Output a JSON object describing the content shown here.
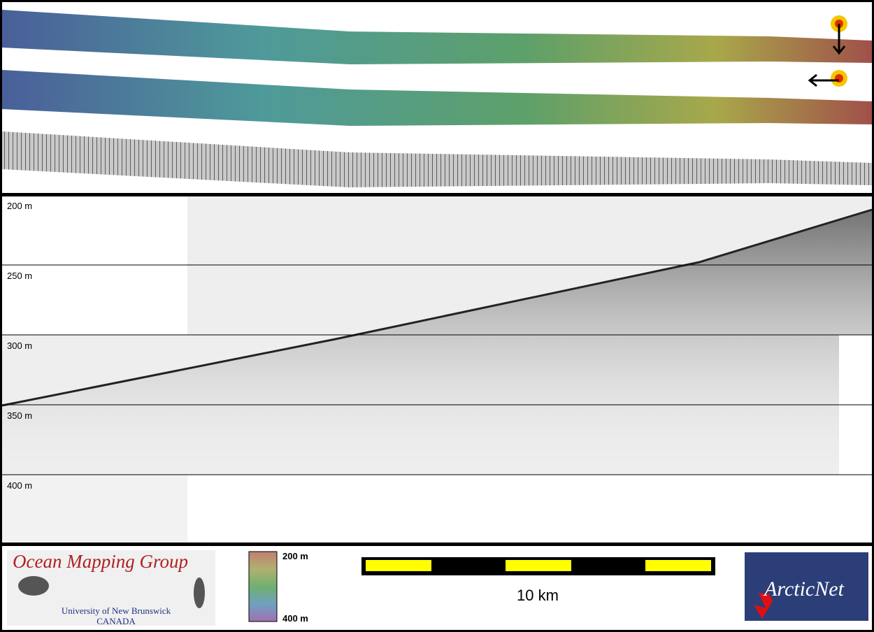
{
  "profile": {
    "depth_labels": [
      "200 m",
      "250 m",
      "300 m",
      "350 m",
      "400 m"
    ]
  },
  "footer": {
    "logo_left": {
      "title": "Ocean Mapping Group",
      "line1": "University of New Brunswick",
      "line2": "CANADA"
    },
    "colorbar": {
      "top": "200 m",
      "bottom": "400 m"
    },
    "scalebar": {
      "label": "10 km"
    },
    "logo_right": {
      "title": "ArcticNet"
    }
  }
}
